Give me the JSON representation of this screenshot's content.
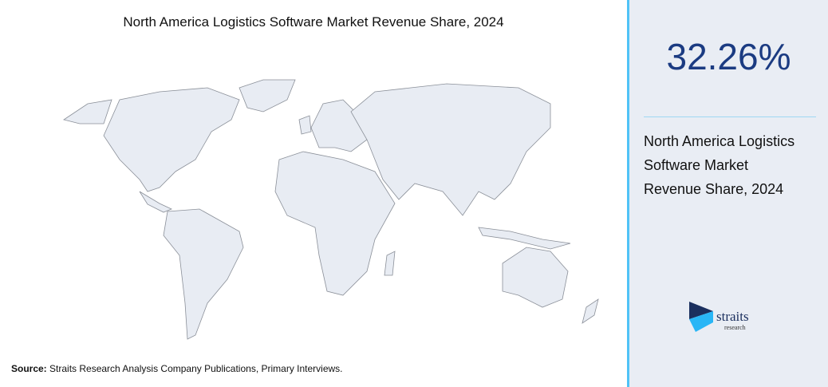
{
  "header": {
    "title": "North America Logistics Software Market Revenue Share, 2024"
  },
  "stat": {
    "value": "32.26%",
    "description": "North America Logistics Software Market Revenue Share, 2024"
  },
  "source": {
    "label": "Source:",
    "text": "Straits Research Analysis Company Publications, Primary Interviews."
  },
  "logo": {
    "name": "straits",
    "tagline": "research"
  }
}
